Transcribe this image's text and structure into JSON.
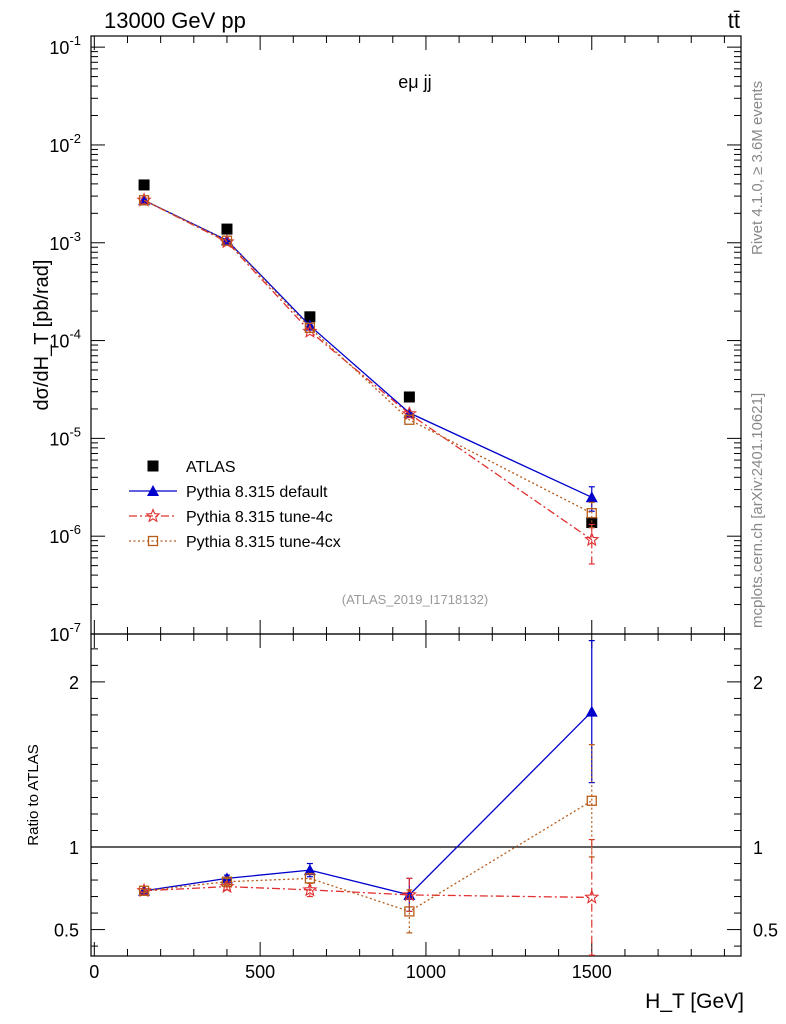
{
  "header": {
    "left_title": "13000 GeV pp",
    "right_title": "tt̄",
    "side_label_top": "Rivet 4.1.0, ≥ 3.6M events",
    "side_label_bottom": "mcplots.cern.ch [arXiv:2401.10621]",
    "analysis_id": "(ATLAS_2019_I1718132)"
  },
  "chart_data": [
    {
      "type": "scatter",
      "panel": "main",
      "title": "eμ jj",
      "ylabel": "dσ/dH_T [pb/rad]",
      "xlabel": "",
      "yscale": "log",
      "xlim": [
        -10,
        1950
      ],
      "ylim": [
        1e-07,
        0.13
      ],
      "x_ticks": [
        0,
        500,
        1000,
        1500
      ],
      "y_ticks": [
        {
          "value": 0.1,
          "label": "10^-1"
        },
        {
          "value": 0.01,
          "label": "10^-2"
        },
        {
          "value": 0.001,
          "label": "10^-3"
        },
        {
          "value": 0.0001,
          "label": "10^-4"
        },
        {
          "value": 1e-05,
          "label": "10^-5"
        },
        {
          "value": 1e-06,
          "label": "10^-6"
        },
        {
          "value": 1e-07,
          "label": "10^-7"
        }
      ],
      "x": [
        150,
        400,
        650,
        950,
        1500
      ],
      "series": [
        {
          "name": "ATLAS",
          "values": [
            0.0039,
            0.00138,
            0.000175,
            2.65e-05,
            1.38e-06
          ],
          "color": "#000000",
          "marker": "square",
          "line": "none"
        },
        {
          "name": "Pythia 8.315 default",
          "values": [
            0.00272,
            0.00106,
            0.000142,
            1.82e-05,
            2.5e-06
          ],
          "errors": [
            0,
            0,
            0,
            0,
            7e-07
          ],
          "color": "#0000cc",
          "marker": "triangle",
          "line": "solid"
        },
        {
          "name": "Pythia 8.315 tune-4c",
          "values": [
            0.00272,
            0.00102,
            0.000124,
            1.78e-05,
            9.2e-07
          ],
          "errors": [
            0,
            0,
            0,
            0,
            4e-07
          ],
          "color": "#e03030",
          "marker": "star",
          "line": "dashdot"
        },
        {
          "name": "Pythia 8.315 tune-4cx",
          "values": [
            0.00272,
            0.00105,
            0.000135,
            1.55e-05,
            1.72e-06
          ],
          "errors": [
            0,
            0,
            0,
            0,
            5e-07
          ],
          "color": "#b85c1a",
          "marker": "open-square",
          "line": "dotted"
        }
      ]
    },
    {
      "type": "scatter",
      "panel": "ratio",
      "ylabel": "Ratio to ATLAS",
      "xlabel": "H_T [GeV]",
      "xlim": [
        -10,
        1950
      ],
      "ylim": [
        0.34,
        2.29
      ],
      "y_ticks": [
        0.5,
        1,
        2
      ],
      "y_tick_labels": [
        "0.5",
        "1",
        "2"
      ],
      "x_ticks": [
        0,
        500,
        1000,
        1500
      ],
      "x_tick_labels": [
        "0",
        "500",
        "1000",
        "1500"
      ],
      "reference_line": 1,
      "x": [
        150,
        400,
        650,
        950,
        1500
      ],
      "series": [
        {
          "name": "Pythia 8.315 default",
          "values": [
            0.735,
            0.81,
            0.86,
            0.71,
            1.82
          ],
          "errors": [
            0.01,
            0.02,
            0.04,
            0.1,
            0.43
          ],
          "color": "#0000cc",
          "marker": "triangle",
          "line": "solid"
        },
        {
          "name": "Pythia 8.315 tune-4c",
          "values": [
            0.735,
            0.76,
            0.74,
            0.71,
            0.695
          ],
          "errors": [
            0.01,
            0.02,
            0.04,
            0.1,
            0.35
          ],
          "color": "#e03030",
          "marker": "star",
          "line": "dashdot"
        },
        {
          "name": "Pythia 8.315 tune-4cx",
          "values": [
            0.735,
            0.79,
            0.81,
            0.61,
            1.28
          ],
          "errors": [
            0.01,
            0.02,
            0.03,
            0.13,
            0.34
          ],
          "color": "#b85c1a",
          "marker": "open-square",
          "line": "dotted"
        }
      ]
    }
  ]
}
